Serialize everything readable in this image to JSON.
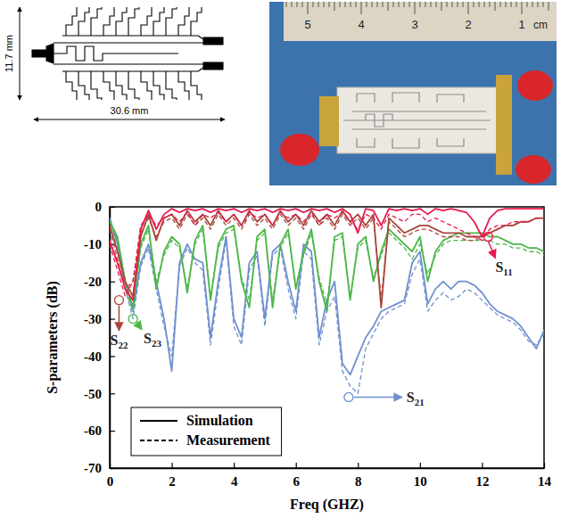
{
  "figure": {
    "layout_drawing": {
      "height_label": "11.7 mm",
      "width_label": "30.6 mm"
    },
    "photo": {
      "ruler_labels": [
        "5",
        "4",
        "3",
        "2",
        "1"
      ],
      "ruler_unit": "cm"
    }
  },
  "chart_data": {
    "type": "line",
    "x_label": "Freq (GHZ)",
    "y_label": "S-parameters (dB)",
    "xlim": [
      0,
      14
    ],
    "xticks": [
      0,
      2,
      4,
      6,
      8,
      10,
      12,
      14
    ],
    "ylim": [
      -70,
      0
    ],
    "yticks": [
      -70,
      -60,
      -50,
      -40,
      -30,
      -20,
      -10,
      0
    ],
    "grid": false,
    "legend": "lower left",
    "legend_entries": [
      {
        "name": "Simulation",
        "line_style": "solid"
      },
      {
        "name": "Measurement",
        "line_style": "dashed"
      }
    ],
    "x": [
      0,
      0.25,
      0.5,
      0.75,
      1,
      1.25,
      1.5,
      1.75,
      2,
      2.25,
      2.5,
      2.75,
      3,
      3.25,
      3.5,
      3.75,
      4,
      4.25,
      4.5,
      4.75,
      5,
      5.25,
      5.5,
      5.75,
      6,
      6.25,
      6.5,
      6.75,
      7,
      7.25,
      7.5,
      7.75,
      8,
      8.25,
      8.5,
      8.75,
      9,
      9.25,
      9.5,
      9.75,
      10,
      10.25,
      10.5,
      10.75,
      11,
      11.25,
      11.5,
      11.75,
      12,
      12.25,
      12.5,
      12.75,
      13,
      13.25,
      13.5,
      13.75,
      14
    ],
    "series": [
      {
        "name": "S11",
        "color": "#e8194b",
        "annotation_point": {
          "x": 12.2,
          "y": -8
        },
        "values": [
          -9,
          -15,
          -22,
          -25,
          -6,
          -1,
          -6,
          -2,
          -0.5,
          -1.5,
          -0.5,
          -1,
          -0.5,
          -1.5,
          -0.5,
          -1,
          -0.5,
          -1.5,
          -0.5,
          -1,
          -0.5,
          -1.5,
          -0.5,
          -1,
          -0.5,
          -1.5,
          -0.5,
          -1,
          -0.5,
          -1.5,
          -0.5,
          -2,
          -7,
          -0.5,
          -1,
          -5,
          -0.5,
          -1,
          -0.5,
          -1,
          -0.5,
          -2,
          -0.5,
          -1,
          -0.5,
          -1,
          -1.5,
          -4,
          -8,
          -3,
          -1,
          -0.5,
          -0.5,
          -0.5,
          -0.5,
          -0.5,
          -0.5
        ],
        "measured_values": [
          -10,
          -17,
          -24,
          -20,
          -5,
          -2,
          -5,
          -3,
          -2,
          -4,
          -1.5,
          -5,
          -2,
          -3,
          -1.5,
          -4,
          -2,
          -5,
          -1.5,
          -3,
          -2,
          -5,
          -1.5,
          -3,
          -2,
          -4,
          -1.5,
          -5,
          -2,
          -3,
          -1.5,
          -4,
          -6,
          -2,
          -3,
          -6,
          -2,
          -3,
          -4,
          -2,
          -2,
          -4,
          -3,
          -4,
          -5,
          -6,
          -7,
          -8,
          -9,
          -6,
          -5,
          -5,
          -4,
          -4,
          -4,
          -3,
          -3
        ]
      },
      {
        "name": "S22",
        "color": "#a9473c",
        "annotation_point": {
          "x": 0.3,
          "y": -25
        },
        "values": [
          -5,
          -12,
          -20,
          -24,
          -8,
          -2,
          -9,
          -3,
          -2,
          -5,
          -1,
          -4,
          -2,
          -5,
          -1,
          -4,
          -2,
          -5,
          -1,
          -4,
          -2,
          -5,
          -1,
          -4,
          -2,
          -5,
          -1,
          -4,
          -2,
          -5,
          -1,
          -4,
          -2,
          -5,
          -2,
          -27,
          -3,
          -5,
          -7,
          -6,
          -5,
          -5,
          -6,
          -7,
          -7,
          -7,
          -8,
          -8,
          -8,
          -7,
          -6,
          -5,
          -5,
          -4,
          -4,
          -3,
          -3
        ],
        "measured_values": [
          -6,
          -14,
          -22,
          -20,
          -7,
          -3,
          -8,
          -4,
          -3,
          -6,
          -2,
          -5,
          -3,
          -6,
          -2,
          -5,
          -3,
          -6,
          -2,
          -5,
          -3,
          -6,
          -2,
          -5,
          -3,
          -6,
          -2,
          -5,
          -3,
          -6,
          -2,
          -5,
          -3,
          -6,
          -3,
          -25,
          -4,
          -6,
          -8,
          -7,
          -6,
          -6,
          -7,
          -8,
          -8,
          -8,
          -9,
          -9,
          -8,
          -7,
          -6,
          -5,
          -5,
          -4,
          -4,
          -3,
          -3
        ]
      },
      {
        "name": "S23",
        "color": "#4cb748",
        "annotation_point": {
          "x": 0.75,
          "y": -30
        },
        "values": [
          -4,
          -8,
          -20,
          -27,
          -10,
          -5,
          -22,
          -12,
          -8,
          -10,
          -23,
          -9,
          -5,
          -25,
          -10,
          -6,
          -5,
          -20,
          -27,
          -8,
          -6,
          -27,
          -10,
          -6,
          -22,
          -12,
          -6,
          -20,
          -28,
          -8,
          -7,
          -25,
          -10,
          -8,
          -20,
          -12,
          -6,
          -8,
          -10,
          -12,
          -8,
          -20,
          -12,
          -9,
          -8,
          -7,
          -7,
          -7,
          -7,
          -8,
          -8,
          -9,
          -10,
          -10,
          -11,
          -11,
          -12
        ],
        "measured_values": [
          -4,
          -9,
          -22,
          -28,
          -11,
          -6,
          -20,
          -13,
          -9,
          -11,
          -22,
          -10,
          -6,
          -24,
          -11,
          -7,
          -6,
          -19,
          -25,
          -9,
          -7,
          -25,
          -11,
          -7,
          -21,
          -13,
          -7,
          -19,
          -26,
          -9,
          -8,
          -24,
          -11,
          -9,
          -19,
          -13,
          -7,
          -9,
          -11,
          -14,
          -10,
          -18,
          -13,
          -10,
          -9,
          -9,
          -9,
          -9,
          -9,
          -9,
          -10,
          -10,
          -11,
          -11,
          -12,
          -12,
          -13
        ]
      },
      {
        "name": "S21",
        "color": "#6f90cf",
        "annotation_point": {
          "x": 7.7,
          "y": -51
        },
        "values": [
          -3,
          -10,
          -20,
          -28,
          -15,
          -10,
          -20,
          -30,
          -44,
          -15,
          -10,
          -14,
          -15,
          -35,
          -20,
          -8,
          -30,
          -35,
          -15,
          -12,
          -30,
          -12,
          -10,
          -20,
          -28,
          -10,
          -12,
          -35,
          -25,
          -20,
          -42,
          -45,
          -40,
          -35,
          -32,
          -28,
          -27,
          -26,
          -25,
          -15,
          -12,
          -26,
          -22,
          -20,
          -22,
          -20,
          -20,
          -21,
          -23,
          -26,
          -28,
          -29,
          -30,
          -32,
          -35,
          -38,
          -33
        ],
        "measured_values": [
          -3,
          -11,
          -22,
          -30,
          -16,
          -11,
          -22,
          -32,
          -40,
          -16,
          -11,
          -15,
          -17,
          -37,
          -22,
          -9,
          -32,
          -37,
          -17,
          -13,
          -32,
          -13,
          -11,
          -22,
          -30,
          -12,
          -14,
          -37,
          -28,
          -24,
          -44,
          -48,
          -50,
          -38,
          -34,
          -30,
          -28,
          -27,
          -26,
          -18,
          -14,
          -28,
          -25,
          -23,
          -25,
          -24,
          -22,
          -23,
          -25,
          -27,
          -29,
          -30,
          -31,
          -33,
          -36,
          -37,
          -34
        ]
      }
    ]
  }
}
